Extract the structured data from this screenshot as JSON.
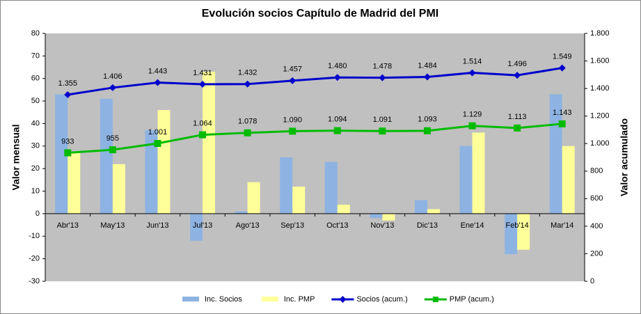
{
  "chart_data": {
    "type": "combo",
    "title": "Evolución socios Capítulo de Madrid del PMI",
    "y_label": "Valor mensual",
    "y2_label": "Valor acumulado",
    "categories": [
      "Abr'13",
      "May'13",
      "Jun'13",
      "Jul'13",
      "Ago'13",
      "Sep'13",
      "Oct'13",
      "Nov'13",
      "Dic'13",
      "Ene'14",
      "Feb'14",
      "Mar'14"
    ],
    "series": [
      {
        "name": "Inc. Socios",
        "type": "bar",
        "color": "#8db3e2",
        "values": [
          53,
          51,
          37,
          -12,
          1,
          25,
          23,
          -2,
          6,
          30,
          -18,
          53
        ]
      },
      {
        "name": "Inc. PMP",
        "type": "bar",
        "color": "#ffff99",
        "values": [
          27,
          22,
          46,
          63,
          14,
          12,
          4,
          -3,
          2,
          36,
          -16,
          30
        ]
      },
      {
        "name": "Socios (acum.)",
        "type": "line",
        "marker": "diamond",
        "axis": "y2",
        "color": "#0000cc",
        "values": [
          1355,
          1406,
          1443,
          1431,
          1432,
          1457,
          1480,
          1478,
          1484,
          1514,
          1496,
          1549
        ],
        "value_labels": [
          "1.355",
          "1.406",
          "1.443",
          "1.431",
          "1.432",
          "1.457",
          "1.480",
          "1.478",
          "1.484",
          "1.514",
          "1.496",
          "1.549"
        ]
      },
      {
        "name": "PMP (acum.)",
        "type": "line",
        "marker": "square",
        "axis": "y2",
        "color": "#00bb00",
        "values": [
          933,
          955,
          1001,
          1064,
          1078,
          1090,
          1094,
          1091,
          1093,
          1129,
          1113,
          1143
        ],
        "value_labels": [
          "933",
          "955",
          "1.001",
          "1.064",
          "1.078",
          "1.090",
          "1.094",
          "1.091",
          "1.093",
          "1.129",
          "1.113",
          "1.143"
        ]
      }
    ],
    "ylim": [
      -30,
      80
    ],
    "yticks": [
      -30,
      -20,
      -10,
      0,
      10,
      20,
      30,
      40,
      50,
      60,
      70,
      80
    ],
    "y2lim": [
      0,
      1800
    ],
    "y2ticks": [
      0,
      200,
      400,
      600,
      800,
      {
        "value": 1000,
        "label": "1.000"
      },
      {
        "value": 1200,
        "label": "1.200"
      },
      {
        "value": 1400,
        "label": "1.400"
      },
      {
        "value": 1600,
        "label": "1.600"
      },
      {
        "value": 1800,
        "label": "1.800"
      }
    ],
    "legend": "bottom"
  }
}
